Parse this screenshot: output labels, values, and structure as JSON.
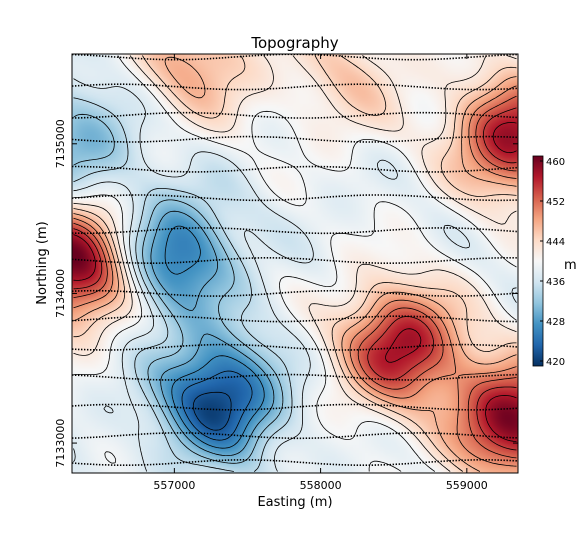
{
  "chart_data": {
    "type": "heatmap",
    "title": "Topography",
    "xlabel": "Easting (m)",
    "ylabel": "Northing (m)",
    "xlim": [
      556300,
      559350
    ],
    "ylim": [
      7132800,
      7135600
    ],
    "x_ticks": [
      557000,
      558000,
      559000
    ],
    "x_tick_labels": [
      "557000",
      "558000",
      "559000"
    ],
    "y_ticks": [
      7133000,
      7134000,
      7135000
    ],
    "y_tick_labels": [
      "7133000",
      "7134000",
      "7135000"
    ],
    "colorbar": {
      "label": "m",
      "range": [
        419,
        461
      ],
      "ticks": [
        420,
        428,
        436,
        444,
        452,
        460
      ],
      "tick_labels": [
        "420",
        "428",
        "436",
        "444",
        "452",
        "460"
      ],
      "colormap": "RdBu_r"
    },
    "field_features": [
      {
        "kind": "high",
        "x": 556320,
        "y": 7134200,
        "value": 461
      },
      {
        "kind": "high",
        "x": 558550,
        "y": 7133650,
        "value": 458
      },
      {
        "kind": "high",
        "x": 559320,
        "y": 7133150,
        "value": 460
      },
      {
        "kind": "high",
        "x": 559320,
        "y": 7135050,
        "value": 458
      },
      {
        "kind": "high",
        "x": 557150,
        "y": 7135550,
        "value": 448
      },
      {
        "kind": "high",
        "x": 558200,
        "y": 7135450,
        "value": 445
      },
      {
        "kind": "low",
        "x": 557300,
        "y": 7133300,
        "value": 420
      },
      {
        "kind": "low",
        "x": 557000,
        "y": 7134250,
        "value": 424
      },
      {
        "kind": "low",
        "x": 556350,
        "y": 7135000,
        "value": 430
      }
    ],
    "survey_lines_northing": [
      7132870,
      7133050,
      7133240,
      7133440,
      7133640,
      7133830,
      7134000,
      7134220,
      7134420,
      7134640,
      7134830,
      7135030,
      7135190,
      7135380,
      7135580
    ],
    "grid": false,
    "legend": "colorbar-right"
  }
}
